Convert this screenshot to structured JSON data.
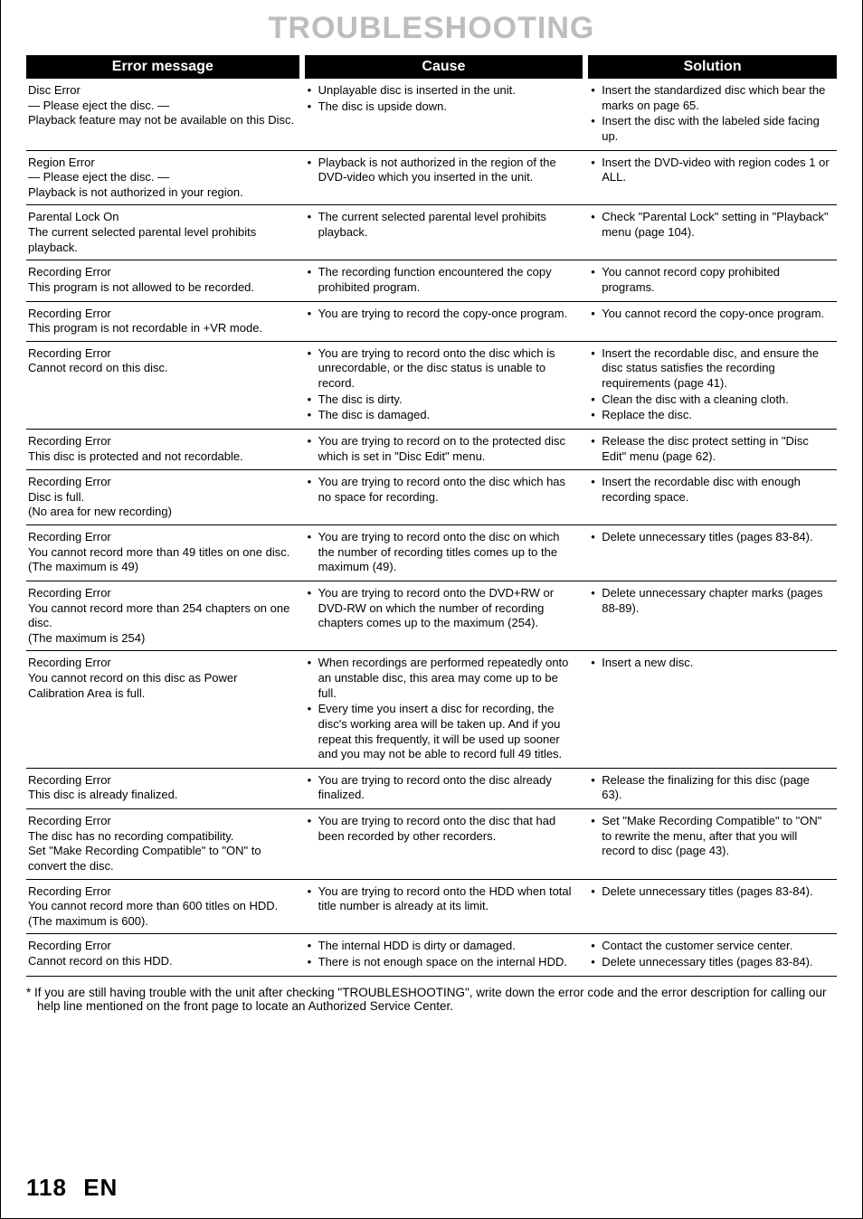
{
  "page": {
    "title": "TROUBLESHOOTING",
    "footnote": "* If you are still having trouble with the unit after checking \"TROUBLESHOOTING\", write down the error code and the error description for calling our help line mentioned on the front page to locate an Authorized Service Center.",
    "page_number": "118",
    "page_lang": "EN"
  },
  "headers": {
    "error": "Error message",
    "cause": "Cause",
    "solution": "Solution"
  },
  "rows": [
    {
      "error": [
        "Disc Error",
        "— Please eject the disc. —",
        "Playback feature may not be available on this Disc."
      ],
      "cause": [
        "Unplayable disc is inserted in the unit.",
        "The disc is upside down."
      ],
      "solution": [
        "Insert the standardized disc which bear the marks on page 65.",
        "Insert the disc with the labeled side facing up."
      ]
    },
    {
      "error": [
        "Region Error",
        "— Please eject the disc. —",
        "Playback is not authorized in your region."
      ],
      "cause": [
        "Playback is not authorized in the region of the DVD-video which you inserted in the unit."
      ],
      "solution": [
        "Insert the DVD-video with region codes 1 or ALL."
      ]
    },
    {
      "error": [
        "Parental Lock On",
        "The current selected parental level prohibits playback."
      ],
      "cause": [
        "The current selected parental level prohibits playback."
      ],
      "solution": [
        "Check \"Parental Lock\" setting in \"Playback\" menu (page 104)."
      ]
    },
    {
      "error": [
        "Recording Error",
        "This program is not allowed to be recorded."
      ],
      "cause": [
        "The recording function encountered the copy prohibited program."
      ],
      "solution": [
        "You cannot record copy prohibited programs."
      ]
    },
    {
      "error": [
        "Recording Error",
        "This program is not recordable in +VR mode."
      ],
      "cause": [
        "You are trying to record the copy-once program."
      ],
      "solution": [
        "You cannot record  the copy-once program."
      ]
    },
    {
      "error": [
        "Recording Error",
        "Cannot record on this disc."
      ],
      "cause": [
        "You are trying to record onto the disc which is unrecordable, or the disc status is unable to record.",
        "The disc is dirty.",
        "The disc is damaged."
      ],
      "solution": [
        "Insert the recordable disc, and ensure the disc status satisfies the recording requirements (page 41).",
        "Clean the disc with a cleaning cloth.",
        "Replace the disc."
      ]
    },
    {
      "error": [
        "Recording Error",
        "This disc is protected and not recordable."
      ],
      "cause": [
        "You are trying to record on to the protected disc which is set in \"Disc Edit\" menu."
      ],
      "solution": [
        "Release the disc protect setting in \"Disc Edit\" menu (page 62)."
      ]
    },
    {
      "error": [
        "Recording Error",
        "Disc is full.",
        "(No area for new recording)"
      ],
      "cause": [
        "You are trying to record onto the disc which has no space for recording."
      ],
      "solution": [
        "Insert the recordable disc with enough recording space."
      ]
    },
    {
      "error": [
        "Recording Error",
        "You cannot record more than 49 titles on one disc.",
        "(The maximum is 49)"
      ],
      "cause": [
        "You are trying to record onto the disc on which the number of recording titles comes up to the maximum (49)."
      ],
      "solution": [
        "Delete unnecessary titles (pages 83-84)."
      ]
    },
    {
      "error": [
        "Recording Error",
        "You cannot record more than 254 chapters on one disc.",
        "(The maximum is 254)"
      ],
      "cause": [
        "You are trying to record onto the DVD+RW or DVD-RW on which the number of recording chapters comes up to the maximum (254)."
      ],
      "solution": [
        "Delete unnecessary chapter marks (pages 88-89)."
      ]
    },
    {
      "error": [
        "Recording Error",
        "You cannot record on this disc as Power Calibration Area is full."
      ],
      "cause": [
        "When recordings are performed repeatedly onto an unstable disc, this area may come up to be full.",
        "Every time you insert a disc for recording, the disc's working area will be taken up. And if you repeat this frequently, it will be used up sooner and you may not be able to record full 49 titles."
      ],
      "solution": [
        "Insert a new disc."
      ]
    },
    {
      "error": [
        "Recording Error",
        "This disc is already finalized."
      ],
      "cause": [
        "You are trying to record onto the disc already finalized."
      ],
      "solution": [
        "Release the finalizing for this disc (page 63)."
      ]
    },
    {
      "error": [
        "Recording Error",
        "The disc has no recording compatibility.",
        "Set \"Make Recording Compatible\" to \"ON\" to convert the disc."
      ],
      "cause": [
        "You are trying to record onto the disc that had been recorded by other recorders."
      ],
      "solution": [
        "Set \"Make Recording Compatible\" to \"ON\" to rewrite the menu, after that you will record to disc (page 43)."
      ]
    },
    {
      "error": [
        "Recording Error",
        "You cannot record more than 600 titles on HDD. (The maximum is 600)."
      ],
      "cause": [
        "You are trying to record onto the HDD when total title number is already at its limit."
      ],
      "solution": [
        "Delete unnecessary titles (pages 83-84)."
      ]
    },
    {
      "error": [
        "Recording Error",
        "Cannot record on this HDD."
      ],
      "cause": [
        "The internal HDD is dirty or damaged.",
        "There is not enough space on the internal HDD."
      ],
      "solution": [
        "Contact the customer service center.",
        "Delete unnecessary titles (pages 83-84)."
      ]
    }
  ]
}
